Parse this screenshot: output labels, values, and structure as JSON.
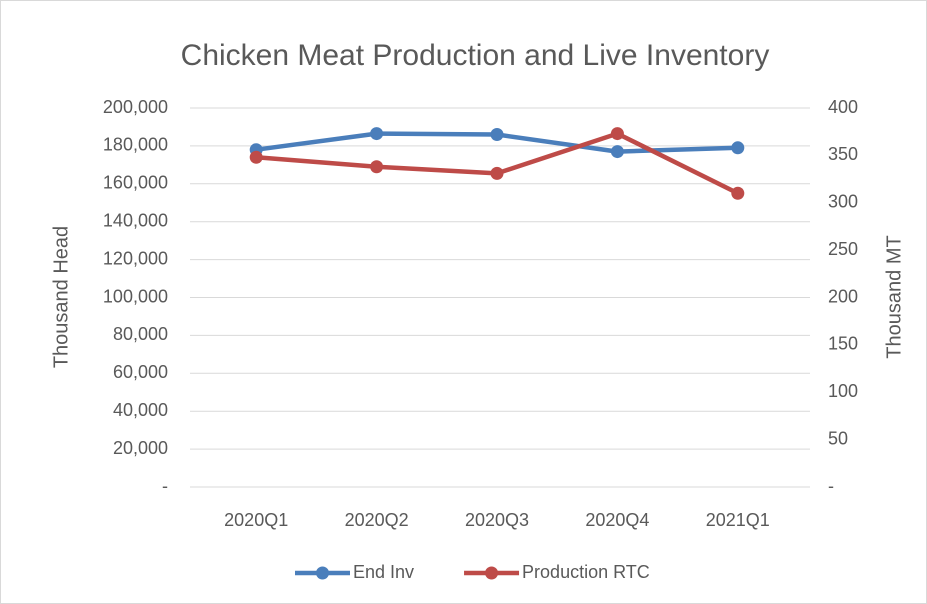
{
  "chart_data": {
    "type": "line",
    "title": "Chicken Meat Production and Live Inventory",
    "categories": [
      "2020Q1",
      "2020Q2",
      "2020Q3",
      "2020Q4",
      "2021Q1"
    ],
    "series": [
      {
        "name": "End Inv",
        "color": "#4a7ebb",
        "values": [
          178000,
          186500,
          186000,
          177000,
          179000
        ]
      },
      {
        "name": "Production RTC",
        "color": "#be4b48",
        "axis": "y2",
        "values": [
          348,
          338,
          331,
          373,
          310
        ]
      }
    ],
    "ylabel": "Thousand Head",
    "y2label": "Thousand MT",
    "ylim": [
      0,
      200000
    ],
    "yticks": [
      {
        "value": 0,
        "label": "-"
      },
      {
        "value": 20000,
        "label": "20,000"
      },
      {
        "value": 40000,
        "label": "40,000"
      },
      {
        "value": 60000,
        "label": "60,000"
      },
      {
        "value": 80000,
        "label": "80,000"
      },
      {
        "value": 100000,
        "label": "100,000"
      },
      {
        "value": 120000,
        "label": "120,000"
      },
      {
        "value": 140000,
        "label": "140,000"
      },
      {
        "value": 160000,
        "label": "160,000"
      },
      {
        "value": 180000,
        "label": "180,000"
      },
      {
        "value": 200000,
        "label": "200,000"
      }
    ],
    "y2lim": [
      0,
      400
    ],
    "y2ticks": [
      {
        "value": 0,
        "label": "-"
      },
      50,
      100,
      150,
      200,
      250,
      300,
      350,
      400
    ],
    "grid": true,
    "legend": "bottom"
  }
}
